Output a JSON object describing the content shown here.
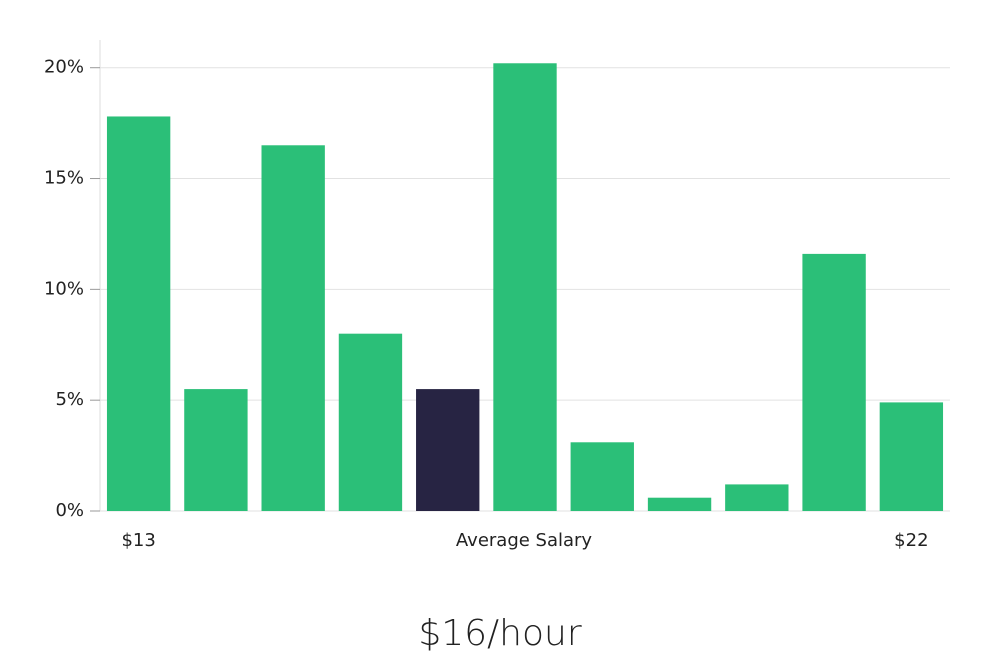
{
  "chart_data": {
    "type": "bar",
    "categories": [
      "$13",
      null,
      null,
      null,
      null,
      null,
      null,
      null,
      null,
      null,
      "$22"
    ],
    "xlabel": "Average Salary",
    "caption": "$16/hour",
    "values": [
      17.8,
      5.5,
      16.5,
      8.0,
      5.5,
      20.2,
      3.1,
      0.6,
      1.2,
      11.6,
      4.9
    ],
    "colors": [
      "#2bbf78",
      "#2bbf78",
      "#2bbf78",
      "#2bbf78",
      "#272443",
      "#2bbf78",
      "#2bbf78",
      "#2bbf78",
      "#2bbf78",
      "#2bbf78",
      "#2bbf78"
    ],
    "ylim": [
      0,
      21.25
    ],
    "yticks": [
      {
        "value": 0,
        "label": "0%"
      },
      {
        "value": 5,
        "label": "5%"
      },
      {
        "value": 10,
        "label": "10%"
      },
      {
        "value": 15,
        "label": "15%"
      },
      {
        "value": 20,
        "label": "20%"
      }
    ],
    "grid": true
  }
}
